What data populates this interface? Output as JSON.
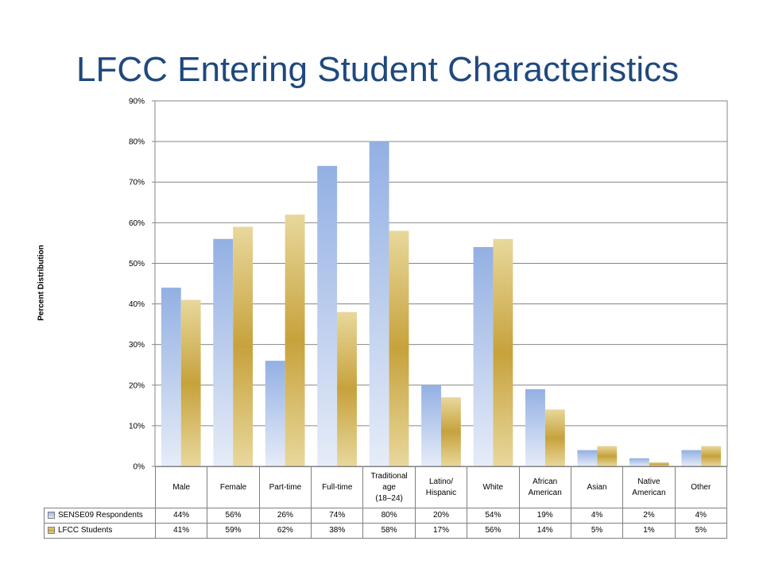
{
  "slide": {
    "title": "LFCC Entering Student Characteristics"
  },
  "chart_data": {
    "type": "bar",
    "title": "LFCC Entering Student Characteristics",
    "ylabel": "Percent Distribution",
    "xlabel": "",
    "ylim": [
      0,
      90
    ],
    "yticks": [
      "0%",
      "10%",
      "20%",
      "30%",
      "40%",
      "50%",
      "60%",
      "70%",
      "80%",
      "90%"
    ],
    "grid": true,
    "legend": "data-table",
    "categories": [
      "Male",
      "Female",
      "Part-time",
      "Full-time",
      "Traditional age (18–24)",
      "Latino/ Hispanic",
      "White",
      "African American",
      "Asian",
      "Native American",
      "Other"
    ],
    "category_lines": [
      [
        "Male"
      ],
      [
        "Female"
      ],
      [
        "Part-time"
      ],
      [
        "Full-time"
      ],
      [
        "Traditional",
        "age",
        "(18–24)"
      ],
      [
        "Latino/",
        "Hispanic"
      ],
      [
        "White"
      ],
      [
        "African",
        "American"
      ],
      [
        "Asian"
      ],
      [
        "Native",
        "American"
      ],
      [
        "Other"
      ]
    ],
    "series": [
      {
        "name": "SENSE09 Respondents",
        "values": [
          44,
          56,
          26,
          74,
          80,
          20,
          54,
          19,
          4,
          2,
          4
        ],
        "labels": [
          "44%",
          "56%",
          "26%",
          "74%",
          "80%",
          "20%",
          "54%",
          "19%",
          "4%",
          "2%",
          "4%"
        ],
        "color": "#9db8e6"
      },
      {
        "name": "LFCC Students",
        "values": [
          41,
          59,
          62,
          38,
          58,
          17,
          56,
          14,
          5,
          1,
          5
        ],
        "labels": [
          "41%",
          "59%",
          "62%",
          "38%",
          "58%",
          "17%",
          "56%",
          "14%",
          "5%",
          "1%",
          "5%"
        ],
        "color": "#c9a641"
      }
    ]
  }
}
